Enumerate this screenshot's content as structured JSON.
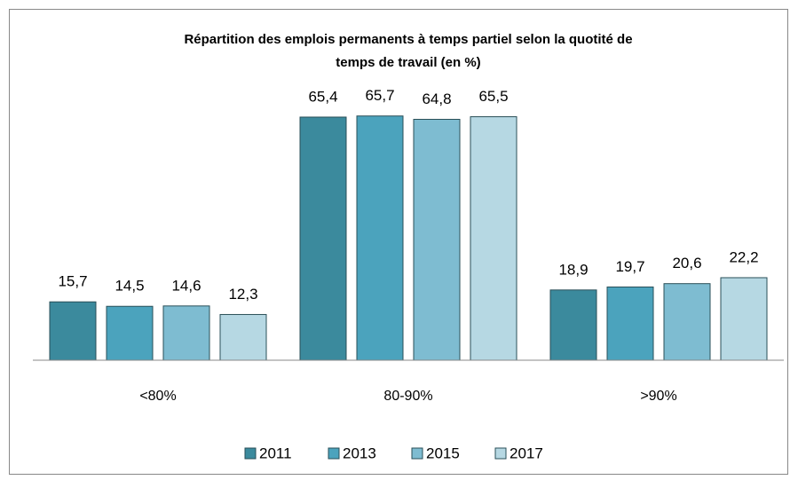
{
  "chart_data": {
    "type": "bar",
    "title": [
      "Répartition des emplois permanents à temps partiel selon la quotité  de",
      "temps de travail (en %)"
    ],
    "categories": [
      "<80%",
      "80-90%",
      ">90%"
    ],
    "series": [
      {
        "name": "2011",
        "color": "#3b8a9d",
        "values": [
          15.7,
          65.4,
          18.9
        ],
        "value_labels": [
          "15,7",
          "65,4",
          "18,9"
        ]
      },
      {
        "name": "2013",
        "color": "#4ba3bd",
        "values": [
          14.5,
          65.7,
          19.7
        ],
        "value_labels": [
          "14,5",
          "65,7",
          "19,7"
        ]
      },
      {
        "name": "2015",
        "color": "#7ebcd1",
        "values": [
          14.6,
          64.8,
          20.6
        ],
        "value_labels": [
          "14,6",
          "64,8",
          "20,6"
        ]
      },
      {
        "name": "2017",
        "color": "#b6d8e3",
        "values": [
          12.3,
          65.5,
          22.2
        ],
        "value_labels": [
          "12,3",
          "65,5",
          "22,2"
        ]
      }
    ],
    "ylim": [
      0,
      70
    ],
    "legend": "bottom"
  }
}
